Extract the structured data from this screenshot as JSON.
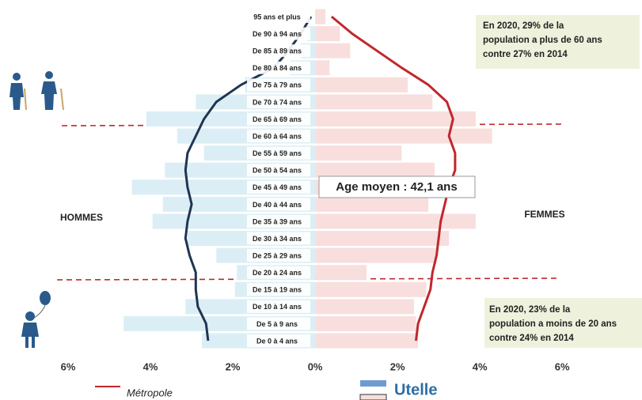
{
  "chart_data": {
    "type": "pyramid",
    "categories": [
      "95 ans et plus",
      "De 90 à 94 ans",
      "De 85 à 89 ans",
      "De 80 à 84 ans",
      "De 75 à 79 ans",
      "De 70 à 74 ans",
      "De 65 à 69 ans",
      "De 60 à 64 ans",
      "De 55 à 59 ans",
      "De 50 à 54 ans",
      "De 45 à 49 ans",
      "De 40 à 44 ans",
      "De 35 à 39 ans",
      "De 30 à 34 ans",
      "De 25 à 29 ans",
      "De 20 à 24 ans",
      "De 15 à 19 ans",
      "De 10 à 14 ans",
      "De 5 à 9 ans",
      "De 0 à 4 ans"
    ],
    "groups": [
      "HOMMES",
      "FEMMES"
    ],
    "series": [
      {
        "name": "Utelle",
        "style": "bar",
        "color_men": "#dbeef5",
        "color_women": "#f9dede",
        "legend_color_men": "#6f9bd1",
        "legend_color_women": "#f9dede",
        "men": [
          0,
          0.2,
          0.35,
          0.6,
          1.7,
          2.9,
          4.1,
          3.35,
          2.7,
          3.65,
          4.45,
          3.7,
          3.95,
          3.1,
          2.4,
          1.9,
          1.95,
          3.15,
          4.65,
          2.75
        ],
        "women": [
          0.25,
          0.6,
          0.85,
          0.35,
          2.25,
          2.85,
          3.9,
          4.3,
          2.1,
          2.9,
          2.6,
          2.75,
          3.9,
          3.25,
          2.95,
          1.25,
          2.7,
          2.4,
          2.45,
          2.5
        ]
      },
      {
        "name": "Métropole",
        "style": "line",
        "color_men": "#1f3552",
        "color_women": "#c0272d",
        "men": [
          0.1,
          0.35,
          0.65,
          1.0,
          1.8,
          2.4,
          2.7,
          2.9,
          3.1,
          3.15,
          3.1,
          3.0,
          3.1,
          3.15,
          3.05,
          2.9,
          2.9,
          2.85,
          2.65,
          2.6
        ],
        "women": [
          0.4,
          0.9,
          1.5,
          2.1,
          2.75,
          3.2,
          3.35,
          3.25,
          3.4,
          3.4,
          3.25,
          3.15,
          3.05,
          3.0,
          2.95,
          2.85,
          2.8,
          2.65,
          2.5,
          2.45
        ]
      }
    ],
    "xlim": [
      -7.5,
      7.9
    ],
    "xticks": [
      {
        "value": -6,
        "label": "6%"
      },
      {
        "value": -4,
        "label": "4%"
      },
      {
        "value": -2,
        "label": "2%"
      },
      {
        "value": 0,
        "label": "0%"
      },
      {
        "value": 2,
        "label": "2%"
      },
      {
        "value": 4,
        "label": "4%"
      },
      {
        "value": 6,
        "label": "6%"
      }
    ],
    "annotations": [
      {
        "text": "Age moyen : 42,1 ans"
      },
      {
        "lines": [
          "En 2020,  29% de la",
          "population a plus de 60 ans",
          "contre 27% en 2014"
        ]
      },
      {
        "lines": [
          "En 2020,  23% de la",
          "population a moins de 20 ans",
          "contre 24% en 2014"
        ]
      }
    ]
  }
}
